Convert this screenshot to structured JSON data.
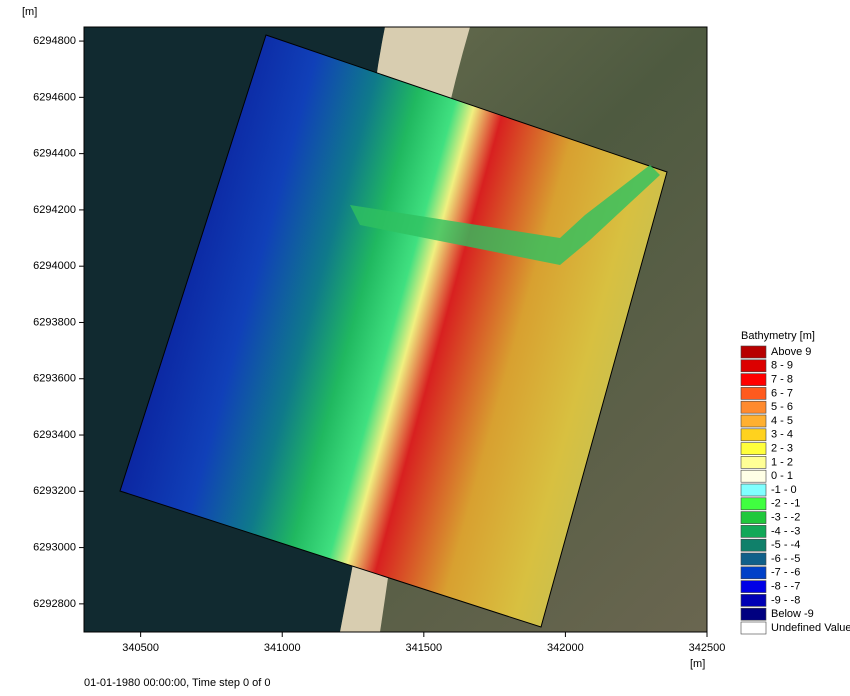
{
  "y_unit": "[m]",
  "x_unit": "[m]",
  "xlim": [
    340300,
    342500
  ],
  "ylim": [
    6292700,
    6294850
  ],
  "xticks": [
    340500,
    341000,
    341500,
    342000,
    342500
  ],
  "yticks": [
    6292800,
    6293000,
    6293200,
    6293400,
    6293600,
    6293800,
    6294000,
    6294200,
    6294400,
    6294600,
    6294800
  ],
  "legend": {
    "title": "Bathymetry [m]",
    "items": [
      {
        "label": "Above  9",
        "color": "#b80000"
      },
      {
        "label": "8 -  9",
        "color": "#dc0000"
      },
      {
        "label": "7 -  8",
        "color": "#ff0000"
      },
      {
        "label": "6 -  7",
        "color": "#ff5a1e"
      },
      {
        "label": "5 -  6",
        "color": "#ff8a2e"
      },
      {
        "label": "4 -  5",
        "color": "#ffb030"
      },
      {
        "label": "3 -  4",
        "color": "#ffd21e"
      },
      {
        "label": "2 -  3",
        "color": "#ffff3c"
      },
      {
        "label": "1 -  2",
        "color": "#ffff96"
      },
      {
        "label": "0 -  1",
        "color": "#ffffe6"
      },
      {
        "label": "-1 -  0",
        "color": "#80ffff"
      },
      {
        "label": "-2 - -1",
        "color": "#40ff40"
      },
      {
        "label": "-3 - -2",
        "color": "#20c83c"
      },
      {
        "label": "-4 - -3",
        "color": "#12a858"
      },
      {
        "label": "-5 - -4",
        "color": "#10806a"
      },
      {
        "label": "-6 - -5",
        "color": "#10608a"
      },
      {
        "label": "-7 - -6",
        "color": "#0040c8"
      },
      {
        "label": "-8 - -7",
        "color": "#0000e6"
      },
      {
        "label": "-9 - -8",
        "color": "#0000b4"
      },
      {
        "label": "Below -9",
        "color": "#000080"
      },
      {
        "label": "Undefined Value",
        "color": "#ffffff"
      }
    ]
  },
  "status": "01-01-1980 00:00:00, Time step 0 of 0"
}
